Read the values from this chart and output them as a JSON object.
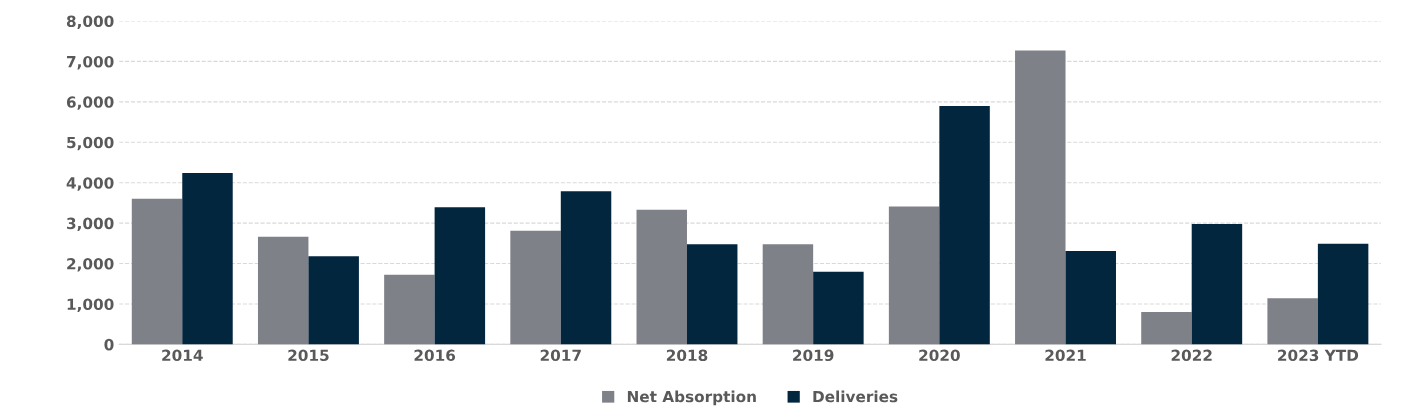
{
  "chart_data": {
    "type": "bar",
    "categories": [
      "2014",
      "2015",
      "2016",
      "2017",
      "2018",
      "2019",
      "2020",
      "2021",
      "2022",
      "2023 YTD"
    ],
    "series": [
      {
        "name": "Net Absorption",
        "color": "#7f8189",
        "values": [
          3600,
          2660,
          1720,
          2810,
          3330,
          2480,
          3410,
          7270,
          800,
          1140
        ]
      },
      {
        "name": "Deliveries",
        "color": "#03263f",
        "values": [
          4240,
          2180,
          3390,
          3790,
          2480,
          1800,
          5900,
          2310,
          2980,
          2490
        ]
      }
    ],
    "ylim": [
      0,
      8000
    ],
    "yticks": [
      {
        "value": 0,
        "label": "0"
      },
      {
        "value": 1000,
        "label": "1,000"
      },
      {
        "value": 2000,
        "label": "2,000"
      },
      {
        "value": 3000,
        "label": "3,000"
      },
      {
        "value": 4000,
        "label": "4,000"
      },
      {
        "value": 5000,
        "label": "5,000"
      },
      {
        "value": 6000,
        "label": "6,000"
      },
      {
        "value": 7000,
        "label": "7,000"
      },
      {
        "value": 8000,
        "label": "8,000"
      }
    ],
    "grid": "y",
    "legend": "bottom"
  }
}
